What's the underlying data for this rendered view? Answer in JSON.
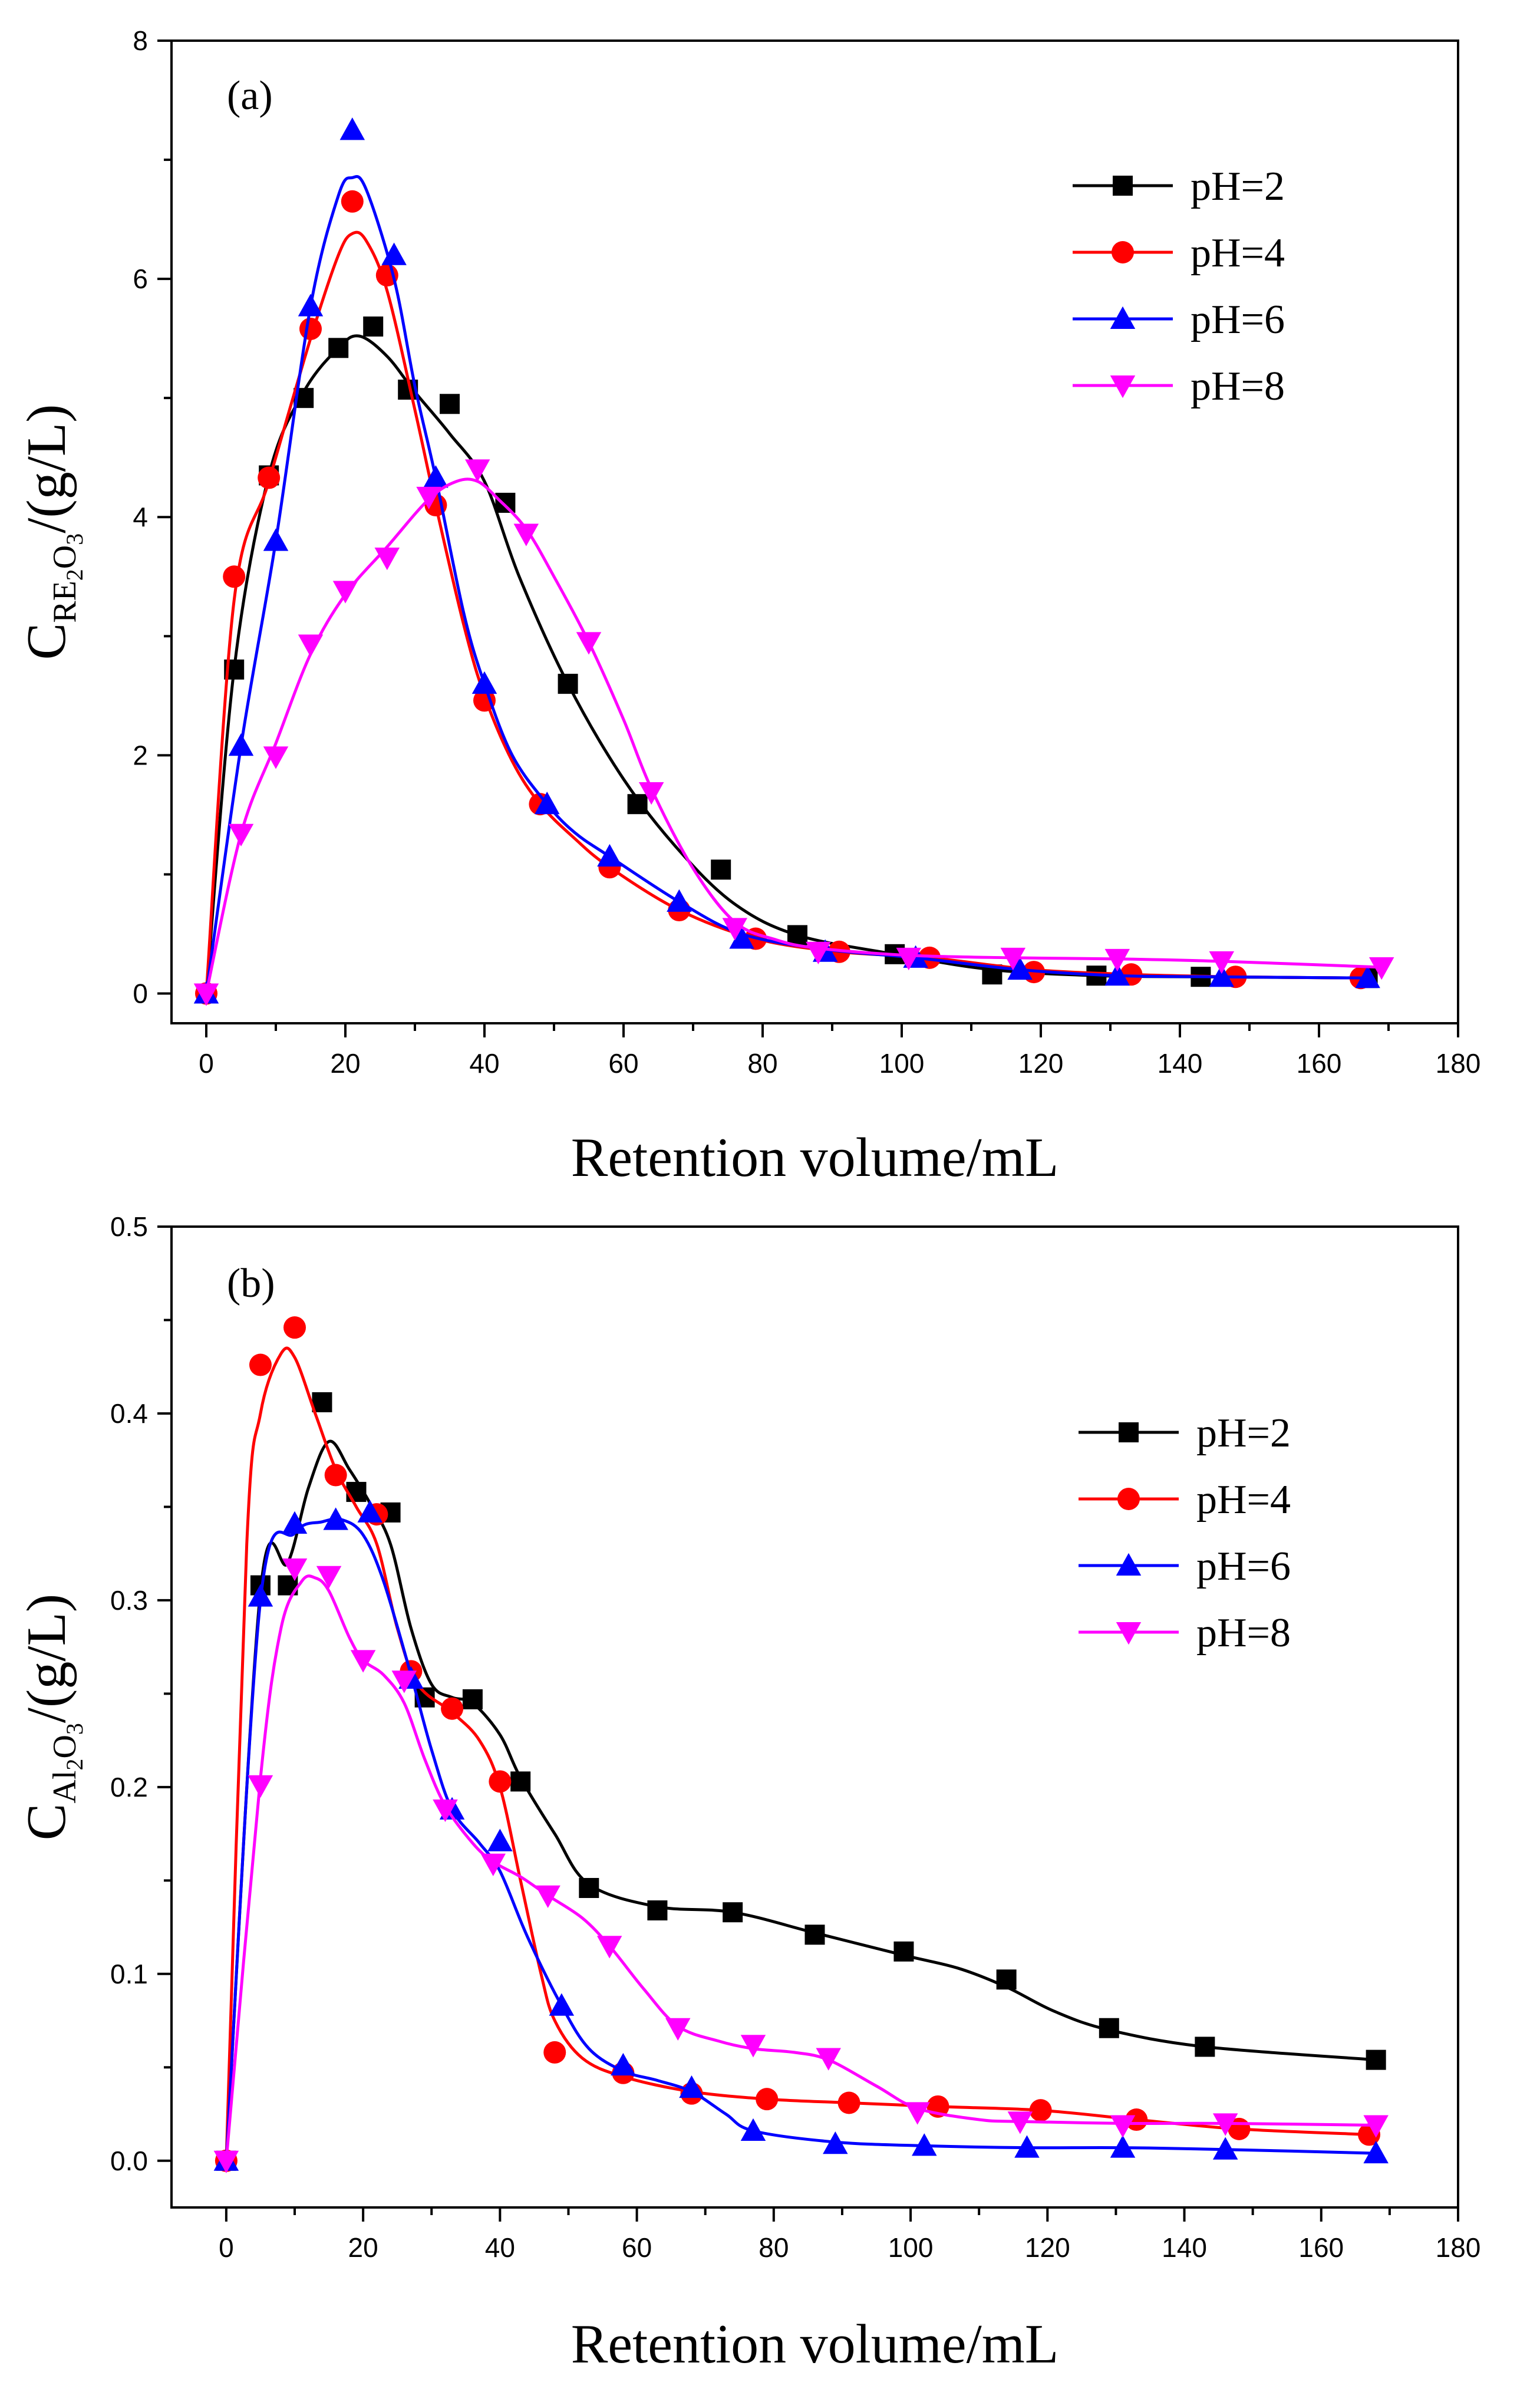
{
  "chart_data": [
    {
      "type": "line",
      "panel_label": "(a)",
      "xlabel": "Retention volume/mL",
      "ylabel": {
        "base": "C",
        "sub_parts": [
          [
            "RE",
            false
          ],
          [
            "2",
            true
          ],
          [
            "O",
            false
          ],
          [
            "3",
            true
          ]
        ],
        "unit": "/(g/L)"
      },
      "xlim": [
        -5,
        180
      ],
      "ylim": [
        -0.25,
        8
      ],
      "xticks": [
        0,
        20,
        40,
        60,
        80,
        100,
        120,
        140,
        160,
        180
      ],
      "xtick_labels": [
        "0",
        "20",
        "40",
        "60",
        "80",
        "100",
        "120",
        "140",
        "160",
        "180"
      ],
      "yticks": [
        0,
        2,
        4,
        6,
        8
      ],
      "ytick_labels": [
        "0",
        "2",
        "4",
        "6",
        "8"
      ],
      "yminor": [
        1,
        3,
        5,
        7
      ],
      "legend_position": "top-right",
      "series": [
        {
          "name": "pH=2",
          "color": "#000000",
          "marker": "square",
          "x": [
            0,
            4,
            9,
            14,
            19,
            24,
            29,
            35,
            43,
            52,
            62,
            74,
            85,
            99,
            113,
            128,
            143,
            167
          ],
          "y": [
            0,
            2.72,
            4.35,
            5.0,
            5.42,
            5.6,
            5.07,
            4.95,
            4.12,
            2.6,
            1.59,
            1.04,
            0.49,
            0.33,
            0.16,
            0.15,
            0.14,
            0.13
          ],
          "curve_x": [
            0,
            4,
            9,
            14,
            19,
            22,
            26,
            30,
            35,
            40,
            45,
            52,
            60,
            68,
            76,
            85,
            99,
            113,
            128,
            143,
            167
          ],
          "curve_y": [
            0,
            2.72,
            4.35,
            5.05,
            5.42,
            5.52,
            5.35,
            5.05,
            4.7,
            4.3,
            3.5,
            2.6,
            1.8,
            1.2,
            0.75,
            0.49,
            0.33,
            0.2,
            0.15,
            0.14,
            0.13
          ]
        },
        {
          "name": "pH=4",
          "color": "#ff0000",
          "marker": "circle",
          "x": [
            0,
            4,
            9,
            15,
            21,
            26,
            33,
            40,
            48,
            58,
            68,
            79,
            91,
            104,
            119,
            133,
            148,
            166
          ],
          "y": [
            0,
            3.5,
            4.33,
            5.58,
            6.65,
            6.03,
            4.1,
            2.46,
            1.59,
            1.06,
            0.7,
            0.46,
            0.35,
            0.3,
            0.18,
            0.16,
            0.14,
            0.13
          ],
          "curve_x": [
            0,
            4,
            9,
            15,
            19,
            21,
            23,
            26,
            30,
            33,
            37,
            40,
            44,
            48,
            53,
            58,
            68,
            79,
            91,
            104,
            119,
            133,
            148,
            166
          ],
          "curve_y": [
            0,
            3.3,
            4.3,
            5.5,
            6.2,
            6.38,
            6.32,
            5.9,
            4.9,
            4.1,
            3.1,
            2.5,
            1.95,
            1.59,
            1.3,
            1.06,
            0.7,
            0.46,
            0.35,
            0.3,
            0.2,
            0.16,
            0.14,
            0.13
          ]
        },
        {
          "name": "pH=6",
          "color": "#0000ff",
          "marker": "triangle-up",
          "x": [
            0,
            5,
            10,
            15,
            21,
            27,
            33,
            40,
            49,
            58,
            68,
            77,
            89,
            102,
            117,
            131,
            146,
            167
          ],
          "y": [
            0,
            2.08,
            3.8,
            5.77,
            7.25,
            6.2,
            4.33,
            2.6,
            1.59,
            1.15,
            0.77,
            0.46,
            0.35,
            0.3,
            0.2,
            0.15,
            0.14,
            0.13
          ],
          "curve_x": [
            0,
            5,
            10,
            15,
            19,
            21,
            23,
            27,
            30,
            33,
            37,
            40,
            44,
            49,
            53,
            58,
            68,
            77,
            89,
            102,
            117,
            131,
            146,
            167
          ],
          "curve_y": [
            0,
            2.08,
            3.8,
            5.77,
            6.7,
            6.85,
            6.75,
            6.0,
            5.1,
            4.33,
            3.2,
            2.6,
            2.0,
            1.59,
            1.35,
            1.15,
            0.77,
            0.5,
            0.37,
            0.3,
            0.2,
            0.15,
            0.14,
            0.13
          ]
        },
        {
          "name": "pH=8",
          "color": "#ff00ff",
          "marker": "triangle-down",
          "x": [
            0,
            5,
            10,
            15,
            20,
            26,
            32,
            39,
            46,
            55,
            64,
            76,
            88,
            101,
            116,
            131,
            146,
            169
          ],
          "y": [
            0,
            1.34,
            1.99,
            2.93,
            3.38,
            3.66,
            4.17,
            4.4,
            3.86,
            2.95,
            1.69,
            0.55,
            0.35,
            0.3,
            0.3,
            0.29,
            0.27,
            0.22
          ],
          "curve_x": [
            0,
            5,
            10,
            15,
            20,
            26,
            32,
            36,
            39,
            42,
            46,
            50,
            55,
            60,
            64,
            70,
            76,
            82,
            88,
            101,
            116,
            131,
            146,
            169
          ],
          "curve_y": [
            0,
            1.34,
            2.1,
            2.85,
            3.35,
            3.75,
            4.15,
            4.3,
            4.3,
            4.15,
            3.9,
            3.5,
            2.95,
            2.3,
            1.72,
            1.05,
            0.6,
            0.45,
            0.38,
            0.32,
            0.3,
            0.29,
            0.27,
            0.22
          ]
        }
      ]
    },
    {
      "type": "line",
      "panel_label": "(b)",
      "xlabel": "Retention volume/mL",
      "ylabel": {
        "base": "C",
        "sub_parts": [
          [
            "Al",
            false
          ],
          [
            "2",
            true
          ],
          [
            "O",
            false
          ],
          [
            "3",
            true
          ]
        ],
        "unit": "/(g/L)"
      },
      "xlim": [
        -8,
        180
      ],
      "ylim": [
        -0.025,
        0.5
      ],
      "xticks": [
        0,
        20,
        40,
        60,
        80,
        100,
        120,
        140,
        160,
        180
      ],
      "xtick_labels": [
        "0",
        "20",
        "40",
        "60",
        "80",
        "100",
        "120",
        "140",
        "160",
        "180"
      ],
      "yticks": [
        0,
        0.1,
        0.2,
        0.3,
        0.4,
        0.5
      ],
      "ytick_labels": [
        "0.0",
        "0.1",
        "0.2",
        "0.3",
        "0.4",
        "0.5"
      ],
      "yminor": [
        0.05,
        0.15,
        0.25,
        0.35,
        0.45
      ],
      "legend_position": "top-right",
      "series": [
        {
          "name": "pH=2",
          "color": "#000000",
          "marker": "square",
          "x": [
            0,
            5,
            9,
            14,
            19,
            24,
            29,
            36,
            43,
            53,
            63,
            74,
            86,
            99,
            114,
            129,
            143,
            168
          ],
          "y": [
            0,
            0.308,
            0.308,
            0.406,
            0.358,
            0.347,
            0.248,
            0.247,
            0.203,
            0.146,
            0.134,
            0.133,
            0.121,
            0.112,
            0.097,
            0.071,
            0.061,
            0.054
          ],
          "curve_x": [
            0,
            5,
            9,
            12,
            15,
            18,
            21,
            24,
            27,
            30,
            33,
            36,
            40,
            43,
            48,
            53,
            63,
            74,
            86,
            99,
            107,
            114,
            121,
            129,
            143,
            168
          ],
          "curve_y": [
            0,
            0.305,
            0.32,
            0.36,
            0.385,
            0.37,
            0.352,
            0.33,
            0.285,
            0.255,
            0.248,
            0.245,
            0.228,
            0.205,
            0.175,
            0.148,
            0.136,
            0.133,
            0.122,
            0.11,
            0.103,
            0.093,
            0.08,
            0.07,
            0.061,
            0.054
          ]
        },
        {
          "name": "pH=4",
          "color": "#ff0000",
          "marker": "circle",
          "x": [
            0,
            5,
            10,
            16,
            22,
            27,
            33,
            40,
            48,
            58,
            68,
            79,
            91,
            104,
            119,
            133,
            148,
            167
          ],
          "y": [
            0,
            0.426,
            0.446,
            0.367,
            0.346,
            0.262,
            0.242,
            0.203,
            0.058,
            0.047,
            0.036,
            0.033,
            0.031,
            0.029,
            0.027,
            0.022,
            0.017,
            0.014
          ],
          "curve_x": [
            0,
            3,
            5,
            8,
            10,
            13,
            16,
            19,
            22,
            25,
            28,
            33,
            37,
            40,
            43,
            46,
            48,
            52,
            58,
            68,
            79,
            91,
            104,
            119,
            133,
            148,
            167
          ],
          "curve_y": [
            0,
            0.33,
            0.4,
            0.432,
            0.43,
            0.4,
            0.37,
            0.35,
            0.33,
            0.285,
            0.255,
            0.24,
            0.225,
            0.2,
            0.15,
            0.1,
            0.075,
            0.055,
            0.045,
            0.037,
            0.033,
            0.031,
            0.029,
            0.027,
            0.022,
            0.017,
            0.014
          ]
        },
        {
          "name": "pH=6",
          "color": "#0000ff",
          "marker": "triangle-up",
          "x": [
            0,
            5,
            10,
            16,
            21,
            27,
            33,
            40,
            49,
            58,
            68,
            77,
            89,
            102,
            117,
            131,
            146,
            168
          ],
          "y": [
            0,
            0.302,
            0.341,
            0.343,
            0.347,
            0.258,
            0.188,
            0.171,
            0.083,
            0.051,
            0.039,
            0.016,
            0.009,
            0.008,
            0.007,
            0.007,
            0.006,
            0.004
          ],
          "curve_x": [
            0,
            5,
            10,
            14,
            17,
            20,
            23,
            27,
            30,
            33,
            37,
            40,
            44,
            49,
            53,
            58,
            63,
            68,
            73,
            77,
            89,
            102,
            117,
            131,
            146,
            168
          ],
          "curve_y": [
            0,
            0.3,
            0.336,
            0.342,
            0.343,
            0.335,
            0.31,
            0.26,
            0.22,
            0.188,
            0.17,
            0.155,
            0.12,
            0.083,
            0.06,
            0.048,
            0.043,
            0.037,
            0.025,
            0.016,
            0.01,
            0.008,
            0.007,
            0.007,
            0.006,
            0.004
          ]
        },
        {
          "name": "pH=8",
          "color": "#ff00ff",
          "marker": "triangle-down",
          "x": [
            0,
            5,
            10,
            15,
            20,
            26,
            32,
            39,
            47,
            56,
            66,
            77,
            88,
            101,
            116,
            131,
            146,
            168
          ],
          "y": [
            0,
            0.201,
            0.317,
            0.313,
            0.268,
            0.257,
            0.188,
            0.159,
            0.142,
            0.115,
            0.071,
            0.062,
            0.055,
            0.026,
            0.021,
            0.019,
            0.02,
            0.019
          ],
          "curve_x": [
            0,
            5,
            8,
            11,
            13,
            15,
            18,
            20,
            23,
            26,
            29,
            32,
            36,
            39,
            43,
            47,
            52,
            56,
            61,
            66,
            72,
            77,
            83,
            88,
            95,
            101,
            110,
            116,
            131,
            146,
            168
          ],
          "curve_y": [
            0,
            0.205,
            0.285,
            0.31,
            0.312,
            0.305,
            0.28,
            0.268,
            0.26,
            0.245,
            0.215,
            0.19,
            0.17,
            0.16,
            0.152,
            0.142,
            0.13,
            0.115,
            0.092,
            0.072,
            0.064,
            0.06,
            0.058,
            0.054,
            0.04,
            0.028,
            0.022,
            0.021,
            0.02,
            0.02,
            0.019
          ]
        }
      ]
    }
  ]
}
